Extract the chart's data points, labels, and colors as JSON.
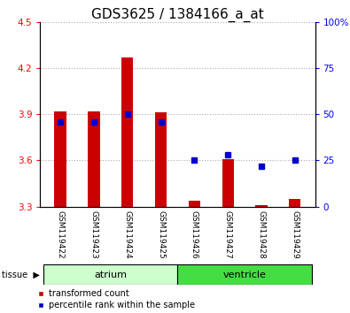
{
  "title": "GDS3625 / 1384166_a_at",
  "samples": [
    "GSM119422",
    "GSM119423",
    "GSM119424",
    "GSM119425",
    "GSM119426",
    "GSM119427",
    "GSM119428",
    "GSM119429"
  ],
  "transformed_counts": [
    3.92,
    3.92,
    4.27,
    3.91,
    3.34,
    3.61,
    3.31,
    3.35
  ],
  "percentile_ranks_pct": [
    46,
    46,
    50,
    46,
    25,
    28,
    22,
    25
  ],
  "bar_base": 3.3,
  "ylim_left": [
    3.3,
    4.5
  ],
  "ylim_right": [
    0,
    100
  ],
  "yticks_left": [
    3.3,
    3.6,
    3.9,
    4.2,
    4.5
  ],
  "yticks_right": [
    0,
    25,
    50,
    75,
    100
  ],
  "ytick_labels_right": [
    "0",
    "25",
    "50",
    "75",
    "100%"
  ],
  "bar_color": "#cc0000",
  "dot_color": "#0000cc",
  "grid_color": "#aaaaaa",
  "tissue_groups": [
    {
      "label": "atrium",
      "indices": [
        0,
        1,
        2,
        3
      ],
      "color": "#ccffcc"
    },
    {
      "label": "ventricle",
      "indices": [
        4,
        5,
        6,
        7
      ],
      "color": "#44dd44"
    }
  ],
  "tissue_label": "tissue",
  "legend_bar_label": "transformed count",
  "legend_dot_label": "percentile rank within the sample",
  "title_fontsize": 11,
  "tick_fontsize": 7.5,
  "sample_fontsize": 6.5
}
